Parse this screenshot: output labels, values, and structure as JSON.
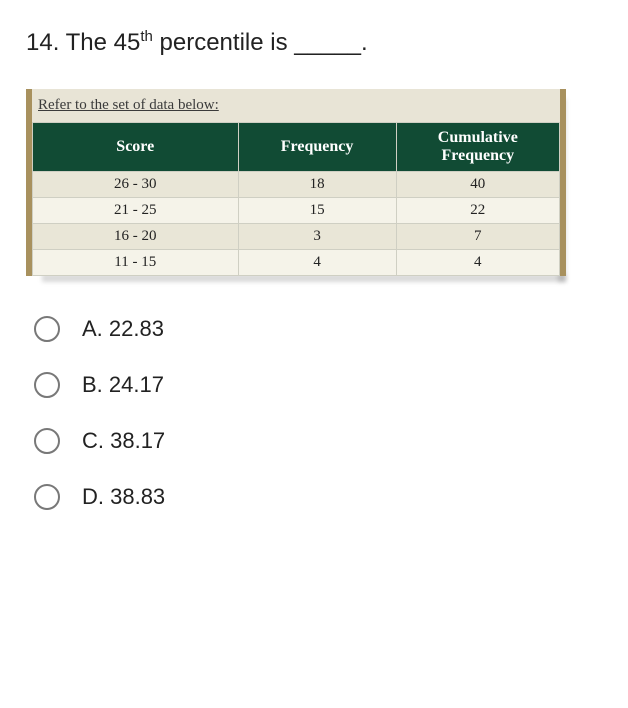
{
  "question": {
    "number": "14.",
    "prefix": "The 45",
    "sup": "th",
    "suffix": " percentile is _____."
  },
  "table": {
    "caption": "Refer to the set of data below:",
    "columns": [
      "Score",
      "Frequency",
      "Cumulative Frequency"
    ],
    "rows": [
      [
        "26 - 30",
        "18",
        "40"
      ],
      [
        "21 - 25",
        "15",
        "22"
      ],
      [
        "16 - 20",
        "3",
        "7"
      ],
      [
        "11 - 15",
        "4",
        "4"
      ]
    ],
    "header_bg": "#114b34",
    "header_color": "#ffffff",
    "row_alt_bg_a": "#e9e6d7",
    "row_alt_bg_b": "#f5f3e9",
    "border_side_color": "#a8915e",
    "grid_color": "#cfcfc3",
    "caption_bg": "#e8e4d6",
    "col_widths": [
      "39%",
      "30%",
      "31%"
    ]
  },
  "options": [
    {
      "label": "A. 22.83"
    },
    {
      "label": "B. 24.17"
    },
    {
      "label": "C. 38.17"
    },
    {
      "label": "D. 38.83"
    }
  ]
}
